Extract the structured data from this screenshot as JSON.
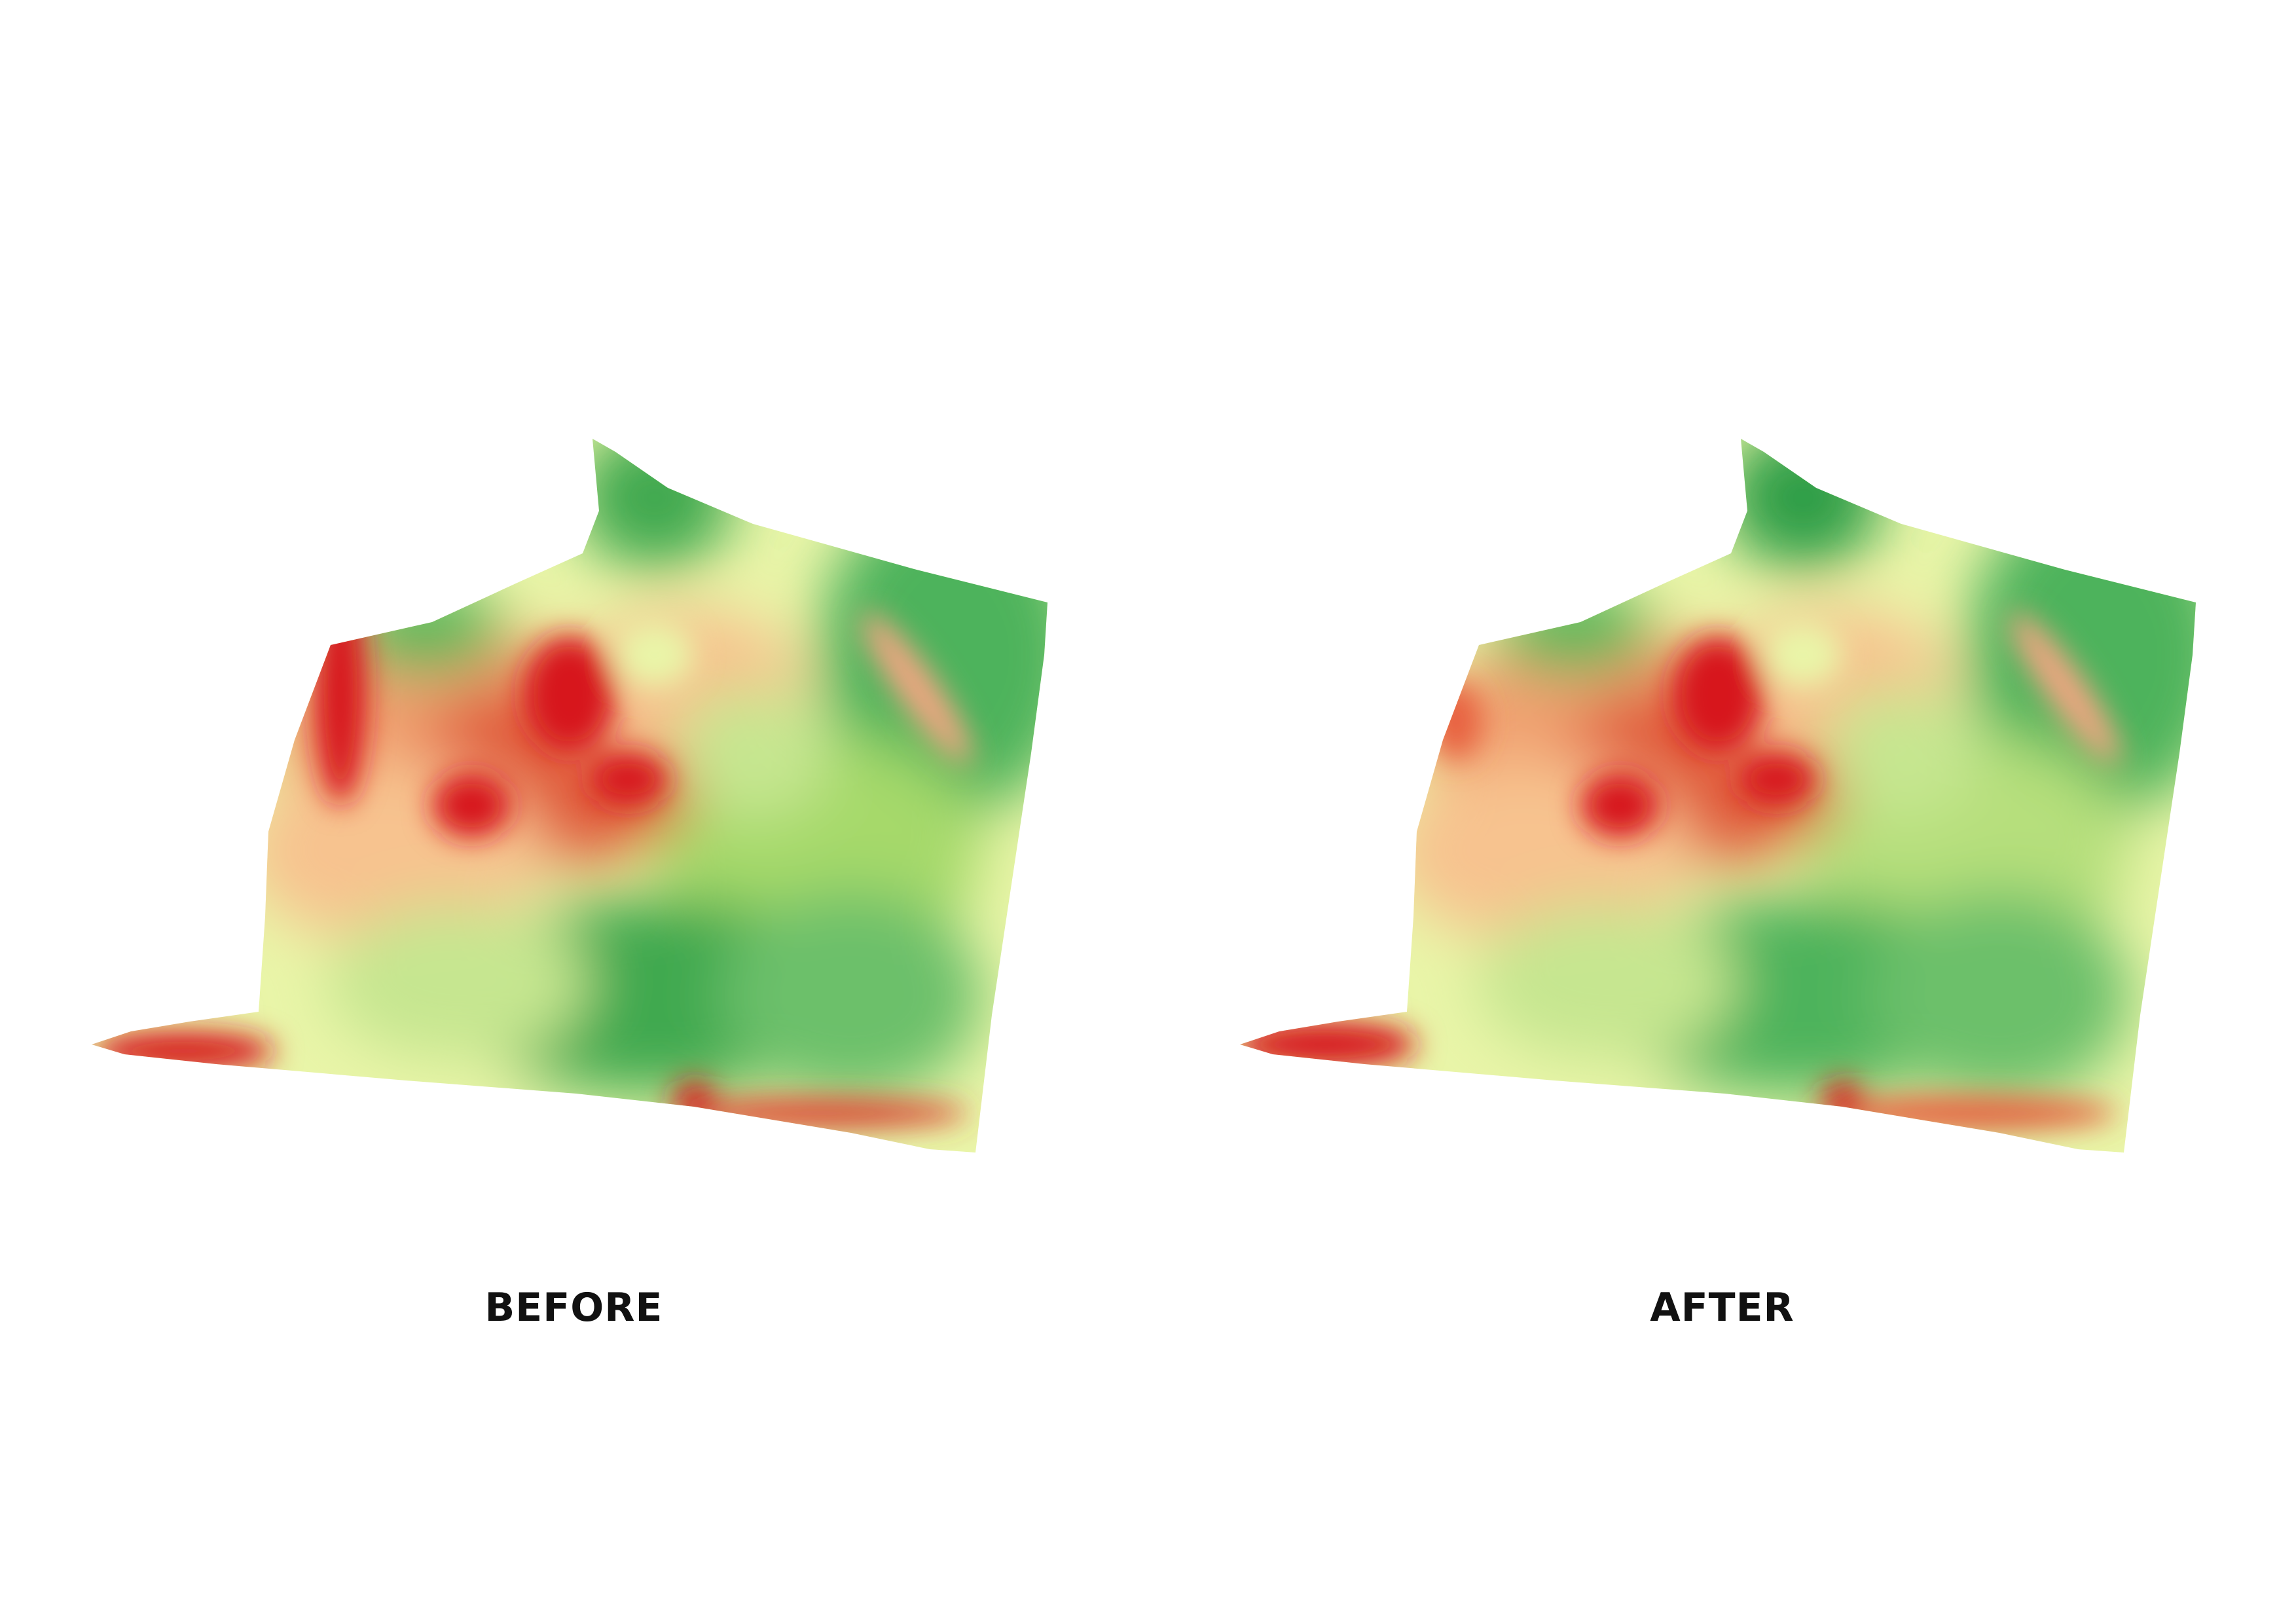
{
  "panels": [
    {
      "id": "before",
      "label": "BEFORE"
    },
    {
      "id": "after",
      "label": "AFTER"
    }
  ],
  "colors": {
    "low": "#d7191c",
    "mid_low": "#f4a582",
    "mid": "#ffffbf",
    "mid_high": "#a6d96a",
    "high": "#1a9641",
    "background": "#ffffff",
    "label": "#111111"
  }
}
